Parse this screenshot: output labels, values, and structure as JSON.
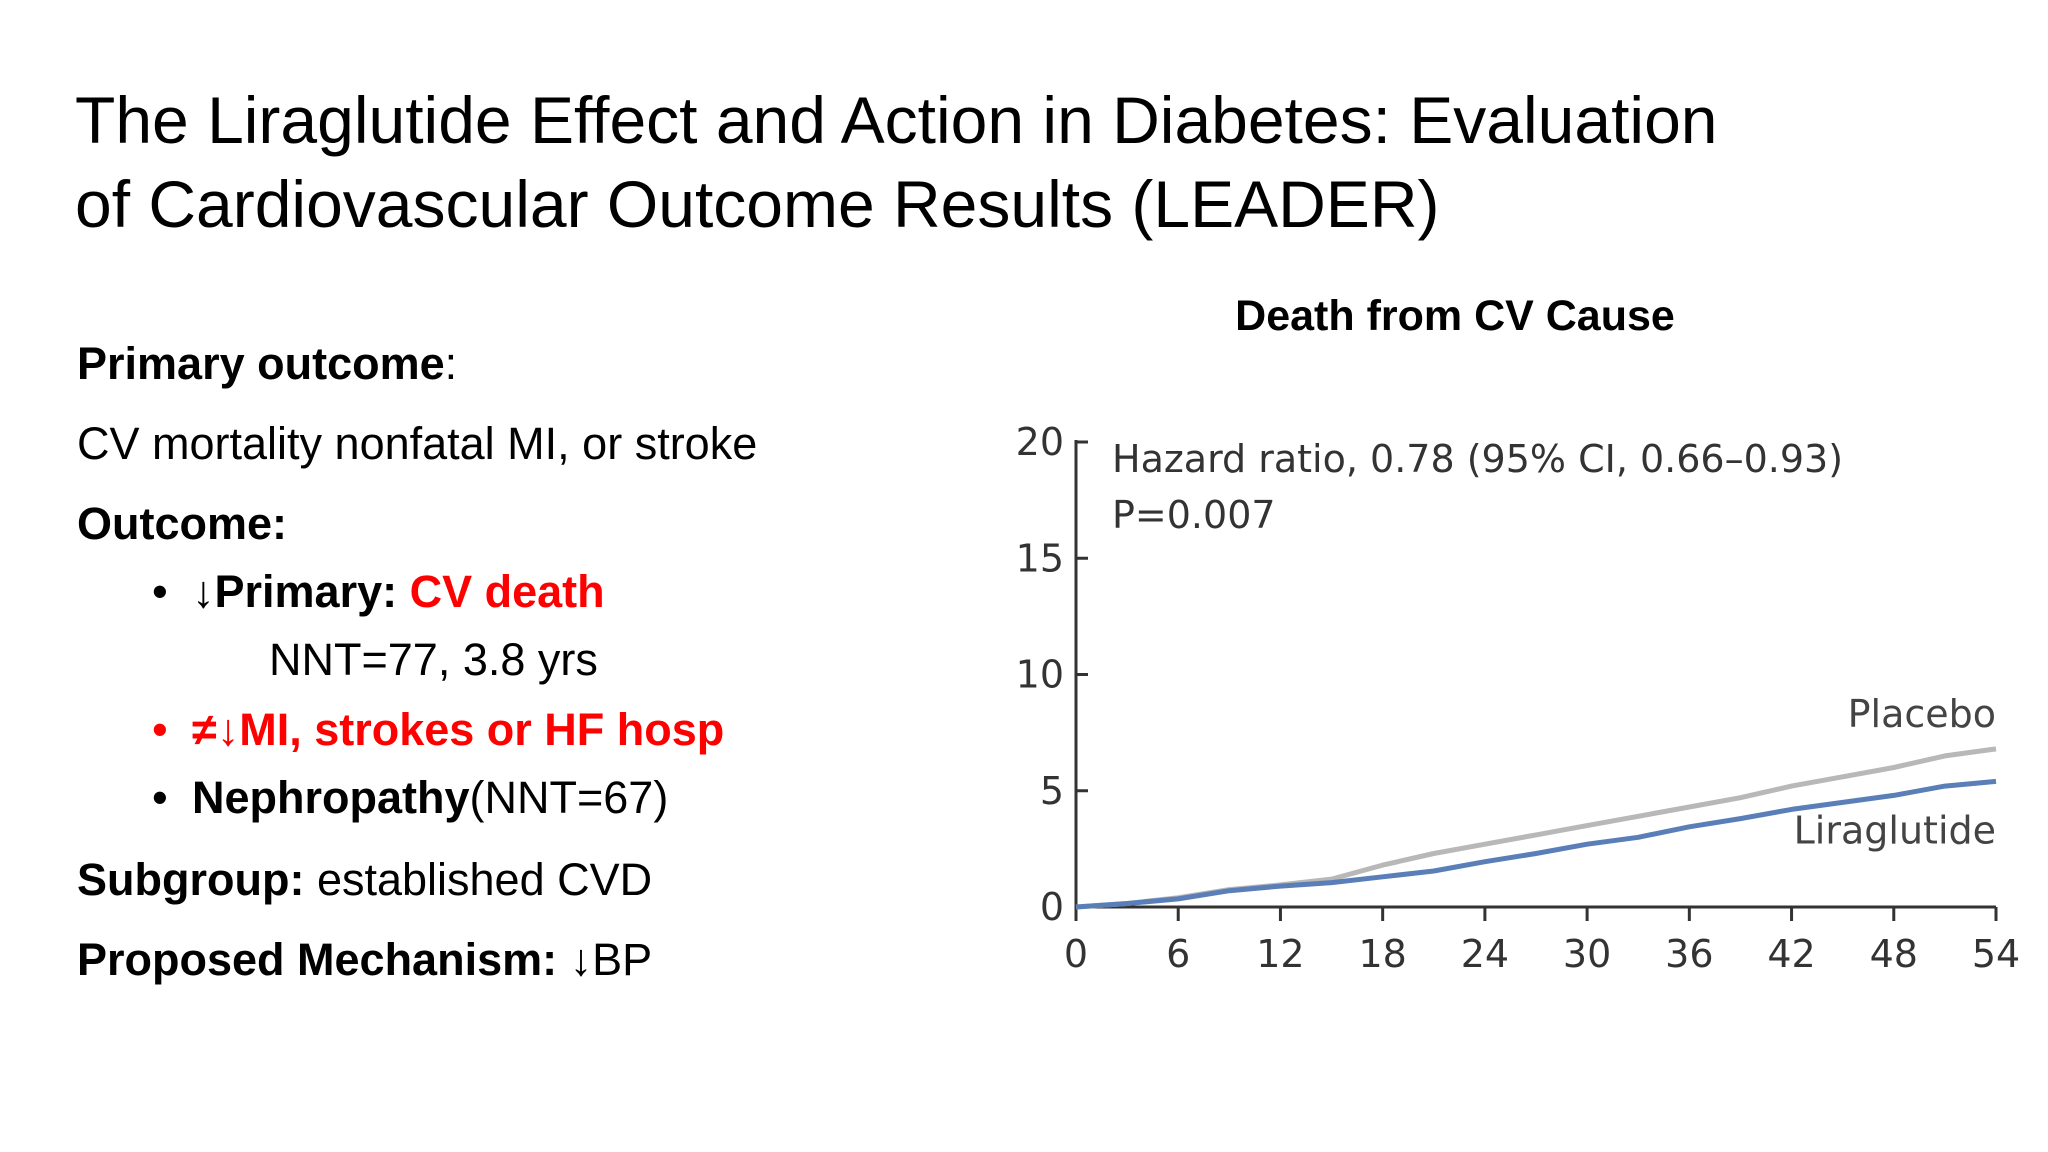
{
  "slide": {
    "title_line1": "The Liraglutide Effect and Action in Diabetes: Evaluation",
    "title_line2": "of Cardiovascular Outcome Results (LEADER)"
  },
  "left": {
    "primary_label": "Primary outcome",
    "primary_colon": ":",
    "primary_text": " CV mortality nonfatal MI, or stroke",
    "outcome_label": "Outcome:",
    "bullets": [
      {
        "dot": "•",
        "arrow": "↓",
        "bold": "Primary: ",
        "red": "CV death"
      },
      {
        "dot": "•",
        "neq": "≠",
        "arrow": "↓",
        "red": "MI, strokes or HF hosp"
      },
      {
        "dot": "•",
        "bold": "Nephropathy",
        "normal": "(NNT=67)"
      }
    ],
    "nnt_line": "NNT=77,  3.8 yrs",
    "subgroup_label": "Subgroup:",
    "subgroup_text": " established CVD",
    "mechanism_label": "Proposed Mechanism:",
    "mechanism_arrow": " ↓",
    "mechanism_text": "BP"
  },
  "chart_data": {
    "type": "line",
    "title": "Death from CV Cause",
    "xlabel": "",
    "ylabel": "",
    "xlim": [
      0,
      54
    ],
    "ylim": [
      0,
      20
    ],
    "x_ticks": [
      "0",
      "6",
      "12",
      "18",
      "24",
      "30",
      "36",
      "42",
      "48",
      "54"
    ],
    "y_ticks": [
      "0",
      "5",
      "10",
      "15",
      "20"
    ],
    "annotation_line1": "Hazard ratio, 0.78 (95% CI, 0.66–0.93)",
    "annotation_line2": "P=0.007",
    "series": [
      {
        "name": "Placebo",
        "color": "#b8b8b8",
        "x": [
          0,
          3,
          6,
          9,
          12,
          15,
          18,
          21,
          24,
          27,
          30,
          33,
          36,
          39,
          42,
          45,
          48,
          51,
          54
        ],
        "values": [
          0,
          0.15,
          0.4,
          0.75,
          0.95,
          1.2,
          1.8,
          2.3,
          2.7,
          3.1,
          3.5,
          3.9,
          4.3,
          4.7,
          5.2,
          5.6,
          6.0,
          6.5,
          6.8
        ]
      },
      {
        "name": "Liraglutide",
        "color": "#5a7fb8",
        "x": [
          0,
          3,
          6,
          9,
          12,
          15,
          18,
          21,
          24,
          27,
          30,
          33,
          36,
          39,
          42,
          45,
          48,
          51,
          54
        ],
        "values": [
          0,
          0.15,
          0.35,
          0.7,
          0.9,
          1.05,
          1.3,
          1.55,
          1.95,
          2.3,
          2.7,
          3.0,
          3.45,
          3.8,
          4.2,
          4.5,
          4.8,
          5.2,
          5.4
        ]
      }
    ]
  }
}
